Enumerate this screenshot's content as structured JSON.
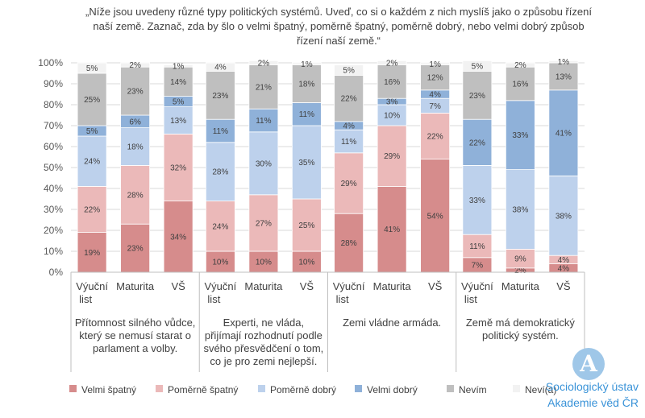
{
  "chart_data": {
    "type": "bar",
    "stacked": true,
    "normalized": true,
    "title": "„Níže jsou uvedeny různé typy politických systémů. Uveď, co si o každém z nich myslíš jako o způsobu řízení naší země. Zaznač, zda by šlo o velmi špatný, poměrně špatný, poměrně dobrý, nebo velmi dobrý způsob řízení naší země.“",
    "ylim": [
      0,
      100
    ],
    "yticks": [
      "0%",
      "10%",
      "20%",
      "30%",
      "40%",
      "50%",
      "60%",
      "70%",
      "80%",
      "90%",
      "100%"
    ],
    "legend_position": "bottom",
    "groups": [
      {
        "label": "Přítomnost silného vůdce, který se nemusí starat o parlament a volby.",
        "categories": [
          "Výuční list",
          "Maturita",
          "VŠ"
        ],
        "values": [
          [
            19,
            22,
            24,
            5,
            25,
            5
          ],
          [
            23,
            28,
            18,
            6,
            23,
            2
          ],
          [
            34,
            32,
            13,
            5,
            14,
            1
          ]
        ]
      },
      {
        "label": "Experti, ne vláda, přijímají rozhodnutí podle svého přesvědčení o tom, co je pro zemi nejlepší.",
        "categories": [
          "Výuční list",
          "Maturita",
          "VŠ"
        ],
        "values": [
          [
            10,
            24,
            28,
            11,
            23,
            4
          ],
          [
            10,
            27,
            30,
            11,
            21,
            2
          ],
          [
            10,
            25,
            35,
            11,
            18,
            1
          ]
        ]
      },
      {
        "label": "Zemi vládne armáda.",
        "categories": [
          "Výuční list",
          "Maturita",
          "VŠ"
        ],
        "values": [
          [
            28,
            29,
            11,
            4,
            22,
            5
          ],
          [
            41,
            29,
            10,
            3,
            16,
            2
          ],
          [
            54,
            22,
            7,
            4,
            12,
            1
          ]
        ]
      },
      {
        "label": "Země má demokratický politický systém.",
        "categories": [
          "Výuční list",
          "Maturita",
          "VŠ"
        ],
        "values": [
          [
            7,
            11,
            33,
            22,
            23,
            5
          ],
          [
            2,
            9,
            38,
            33,
            16,
            2
          ],
          [
            4,
            4,
            38,
            41,
            13,
            1
          ]
        ]
      }
    ],
    "series": [
      {
        "name": "Velmi špatný",
        "color": "#d68c8c"
      },
      {
        "name": "Poměrně špatný",
        "color": "#ebb9b9"
      },
      {
        "name": "Poměrně dobrý",
        "color": "#bdd1ec"
      },
      {
        "name": "Velmi dobrý",
        "color": "#8fb1d9"
      },
      {
        "name": "Nevím",
        "color": "#bfbfbf"
      },
      {
        "name": "Neví(a)",
        "color": "#f2f2f2"
      }
    ]
  },
  "logo": {
    "line1": "Sociologický ústav",
    "line2": "Akademie věd ČR",
    "mark": "A"
  }
}
